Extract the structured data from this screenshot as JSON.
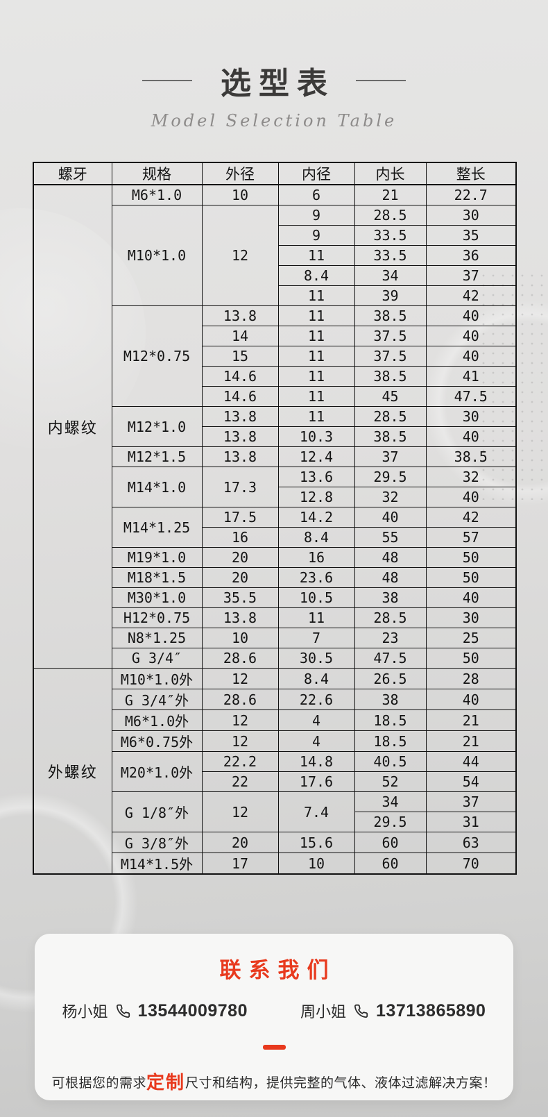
{
  "page": {
    "title": "选型表",
    "subtitle": "Model Selection Table"
  },
  "table": {
    "headers": [
      "螺牙",
      "规格",
      "外径",
      "内径",
      "内长",
      "整长"
    ],
    "rows": [
      [
        {
          "t": "内螺纹",
          "rs": 24
        },
        {
          "t": "M6*1.0"
        },
        {
          "t": "10"
        },
        {
          "t": "6"
        },
        {
          "t": "21"
        },
        {
          "t": "22.7"
        }
      ],
      [
        {
          "t": "M10*1.0",
          "rs": 5
        },
        {
          "t": "12",
          "rs": 5
        },
        {
          "t": "9"
        },
        {
          "t": "28.5"
        },
        {
          "t": "30"
        }
      ],
      [
        {
          "t": "9"
        },
        {
          "t": "33.5"
        },
        {
          "t": "35"
        }
      ],
      [
        {
          "t": "11"
        },
        {
          "t": "33.5"
        },
        {
          "t": "36"
        }
      ],
      [
        {
          "t": "8.4"
        },
        {
          "t": "34"
        },
        {
          "t": "37"
        }
      ],
      [
        {
          "t": "11"
        },
        {
          "t": "39"
        },
        {
          "t": "42"
        }
      ],
      [
        {
          "t": "M12*0.75",
          "rs": 5
        },
        {
          "t": "13.8"
        },
        {
          "t": "11"
        },
        {
          "t": "38.5"
        },
        {
          "t": "40"
        }
      ],
      [
        {
          "t": "14"
        },
        {
          "t": "11"
        },
        {
          "t": "37.5"
        },
        {
          "t": "40"
        }
      ],
      [
        {
          "t": "15"
        },
        {
          "t": "11"
        },
        {
          "t": "37.5"
        },
        {
          "t": "40"
        }
      ],
      [
        {
          "t": "14.6"
        },
        {
          "t": "11"
        },
        {
          "t": "38.5"
        },
        {
          "t": "41"
        }
      ],
      [
        {
          "t": "14.6"
        },
        {
          "t": "11"
        },
        {
          "t": "45"
        },
        {
          "t": "47.5"
        }
      ],
      [
        {
          "t": "M12*1.0",
          "rs": 2
        },
        {
          "t": "13.8"
        },
        {
          "t": "11"
        },
        {
          "t": "28.5"
        },
        {
          "t": "30"
        }
      ],
      [
        {
          "t": "13.8"
        },
        {
          "t": "10.3"
        },
        {
          "t": "38.5"
        },
        {
          "t": "40"
        }
      ],
      [
        {
          "t": "M12*1.5"
        },
        {
          "t": "13.8"
        },
        {
          "t": "12.4"
        },
        {
          "t": "37"
        },
        {
          "t": "38.5"
        }
      ],
      [
        {
          "t": "M14*1.0",
          "rs": 2
        },
        {
          "t": "17.3",
          "rs": 2
        },
        {
          "t": "13.6"
        },
        {
          "t": "29.5"
        },
        {
          "t": "32"
        }
      ],
      [
        {
          "t": "12.8"
        },
        {
          "t": "32"
        },
        {
          "t": "40"
        }
      ],
      [
        {
          "t": "M14*1.25",
          "rs": 2
        },
        {
          "t": "17.5"
        },
        {
          "t": "14.2"
        },
        {
          "t": "40"
        },
        {
          "t": "42"
        }
      ],
      [
        {
          "t": "16"
        },
        {
          "t": "8.4"
        },
        {
          "t": "55"
        },
        {
          "t": "57"
        }
      ],
      [
        {
          "t": "M19*1.0"
        },
        {
          "t": "20"
        },
        {
          "t": "16"
        },
        {
          "t": "48"
        },
        {
          "t": "50"
        }
      ],
      [
        {
          "t": "M18*1.5"
        },
        {
          "t": "20"
        },
        {
          "t": "23.6"
        },
        {
          "t": "48"
        },
        {
          "t": "50"
        }
      ],
      [
        {
          "t": "M30*1.0"
        },
        {
          "t": "35.5"
        },
        {
          "t": "10.5"
        },
        {
          "t": "38"
        },
        {
          "t": "40"
        }
      ],
      [
        {
          "t": "H12*0.75"
        },
        {
          "t": "13.8"
        },
        {
          "t": "11"
        },
        {
          "t": "28.5"
        },
        {
          "t": "30"
        }
      ],
      [
        {
          "t": "N8*1.25"
        },
        {
          "t": "10"
        },
        {
          "t": "7"
        },
        {
          "t": "23"
        },
        {
          "t": "25"
        }
      ],
      [
        {
          "t": "G 3/4″"
        },
        {
          "t": "28.6"
        },
        {
          "t": "30.5"
        },
        {
          "t": "47.5"
        },
        {
          "t": "50"
        }
      ],
      [
        {
          "t": "外螺纹",
          "rs": 10
        },
        {
          "t": "M10*1.0外"
        },
        {
          "t": "12"
        },
        {
          "t": "8.4"
        },
        {
          "t": "26.5"
        },
        {
          "t": "28"
        }
      ],
      [
        {
          "t": "G 3/4″外"
        },
        {
          "t": "28.6"
        },
        {
          "t": "22.6"
        },
        {
          "t": "38"
        },
        {
          "t": "40"
        }
      ],
      [
        {
          "t": "M6*1.0外"
        },
        {
          "t": "12"
        },
        {
          "t": "4"
        },
        {
          "t": "18.5"
        },
        {
          "t": "21"
        }
      ],
      [
        {
          "t": "M6*0.75外"
        },
        {
          "t": "12"
        },
        {
          "t": "4"
        },
        {
          "t": "18.5"
        },
        {
          "t": "21"
        }
      ],
      [
        {
          "t": "M20*1.0外",
          "rs": 2
        },
        {
          "t": "22.2"
        },
        {
          "t": "14.8"
        },
        {
          "t": "40.5"
        },
        {
          "t": "44"
        }
      ],
      [
        {
          "t": "22"
        },
        {
          "t": "17.6"
        },
        {
          "t": "52"
        },
        {
          "t": "54"
        }
      ],
      [
        {
          "t": "G 1/8″外",
          "rs": 2
        },
        {
          "t": "12",
          "rs": 2
        },
        {
          "t": "7.4",
          "rs": 2
        },
        {
          "t": "34"
        },
        {
          "t": "37"
        }
      ],
      [
        {
          "t": "29.5"
        },
        {
          "t": "31"
        }
      ],
      [
        {
          "t": "G 3/8″外"
        },
        {
          "t": "20"
        },
        {
          "t": "15.6"
        },
        {
          "t": "60"
        },
        {
          "t": "63"
        }
      ],
      [
        {
          "t": "M14*1.5外"
        },
        {
          "t": "17"
        },
        {
          "t": "10"
        },
        {
          "t": "60"
        },
        {
          "t": "70"
        }
      ]
    ]
  },
  "contact": {
    "title": "联系我们",
    "contacts": [
      {
        "name": "杨小姐",
        "phone": "13544009780"
      },
      {
        "name": "周小姐",
        "phone": "13713865890"
      }
    ],
    "note_prefix": "可根据您的需求",
    "note_highlight": "定制",
    "note_suffix": "尺寸和结构，提供完整的气体、液体过滤解决方案！"
  },
  "colors": {
    "accent_red": "#e8391d",
    "table_line": "#111111",
    "title_gray": "#3b3a39"
  }
}
